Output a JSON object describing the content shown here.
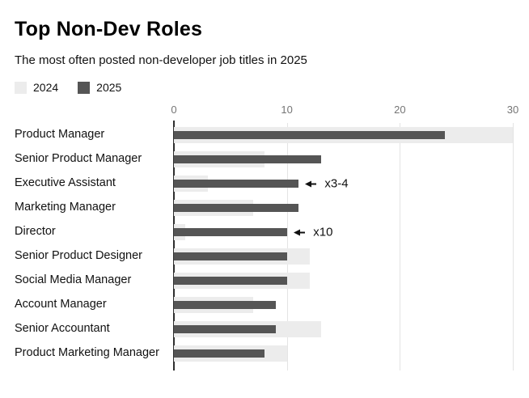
{
  "header": {
    "title": "Top Non-Dev Roles",
    "subtitle": "The most often posted non-developer job titles in 2025"
  },
  "legend": [
    {
      "label": "2024",
      "color": "#ececec"
    },
    {
      "label": "2025",
      "color": "#555555"
    }
  ],
  "chart_data": {
    "type": "bar",
    "orientation": "horizontal",
    "title": "Top Non-Dev Roles",
    "subtitle": "The most often posted non-developer job titles in 2025",
    "xlabel": "",
    "ylabel": "",
    "xlim": [
      0,
      30
    ],
    "ticks": [
      0,
      10,
      20,
      30
    ],
    "grid": true,
    "legend_position": "top",
    "categories": [
      "Product Manager",
      "Senior Product Manager",
      "Executive Assistant",
      "Marketing Manager",
      "Director",
      "Senior Product Designer",
      "Social Media Manager",
      "Account Manager",
      "Senior Accountant",
      "Product Marketing Manager"
    ],
    "series": [
      {
        "name": "2024",
        "color": "#ececec",
        "values": [
          30,
          8,
          3,
          7,
          1,
          12,
          12,
          7,
          13,
          10
        ]
      },
      {
        "name": "2025",
        "color": "#555555",
        "values": [
          24,
          13,
          11,
          11,
          10,
          10,
          10,
          9,
          9,
          8
        ]
      }
    ],
    "annotations": [
      {
        "row_index": 2,
        "label": "x3-4",
        "points_to": "2025-bar-end"
      },
      {
        "row_index": 4,
        "label": "x10",
        "points_to": "2025-bar-end"
      }
    ]
  }
}
